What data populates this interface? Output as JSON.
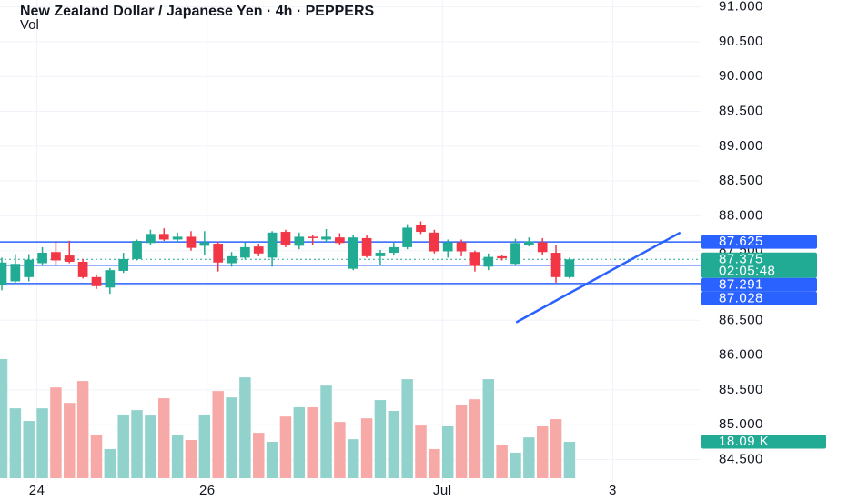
{
  "chart_data": {
    "type": "candlestick",
    "title": "New Zealand Dollar / Japanese Yen · 4h · PEPPERS",
    "volume_title": "Vol",
    "up_color": "#22ab94",
    "down_color": "#f23645",
    "volume_up_color": "#92d2cc",
    "volume_down_color": "#f7a9a7",
    "open": [
      87.0,
      87.06,
      87.12,
      87.32,
      87.48,
      87.43,
      87.34,
      87.12,
      86.97,
      87.21,
      87.38,
      87.61,
      87.74,
      87.66,
      87.7,
      87.57,
      87.6,
      87.32,
      87.4,
      87.56,
      87.4,
      87.77,
      87.57,
      87.7,
      87.66,
      87.69,
      87.24,
      87.68,
      87.42,
      87.47,
      87.55,
      87.87,
      87.76,
      87.49,
      87.62,
      87.48,
      87.27,
      87.42,
      87.31,
      87.58,
      87.62,
      87.47,
      87.12
    ],
    "high": [
      87.4,
      87.45,
      87.45,
      87.55,
      87.64,
      87.64,
      87.38,
      87.16,
      87.25,
      87.47,
      87.66,
      87.8,
      87.82,
      87.76,
      87.78,
      87.78,
      87.63,
      87.48,
      87.62,
      87.6,
      87.78,
      87.8,
      87.76,
      87.73,
      87.81,
      87.75,
      87.72,
      87.72,
      87.51,
      87.62,
      87.88,
      87.92,
      87.8,
      87.66,
      87.66,
      87.5,
      87.46,
      87.44,
      87.67,
      87.69,
      87.68,
      87.58,
      87.4
    ],
    "low": [
      86.93,
      87.02,
      87.06,
      87.28,
      87.3,
      87.32,
      87.1,
      86.95,
      86.88,
      87.18,
      87.36,
      87.58,
      87.64,
      87.62,
      87.5,
      87.44,
      87.2,
      87.27,
      87.37,
      87.42,
      87.27,
      87.55,
      87.52,
      87.58,
      87.62,
      87.58,
      87.22,
      87.4,
      87.28,
      87.43,
      87.52,
      87.74,
      87.46,
      87.4,
      87.42,
      87.2,
      87.22,
      87.36,
      87.29,
      87.56,
      87.44,
      87.04,
      87.1
    ],
    "close": [
      87.33,
      87.31,
      87.37,
      87.47,
      87.36,
      87.34,
      87.12,
      86.99,
      87.22,
      87.38,
      87.64,
      87.74,
      87.66,
      87.7,
      87.54,
      87.62,
      87.33,
      87.42,
      87.55,
      87.46,
      87.76,
      87.58,
      87.7,
      87.68,
      87.7,
      87.61,
      87.69,
      87.42,
      87.47,
      87.55,
      87.83,
      87.77,
      87.49,
      87.62,
      87.49,
      87.28,
      87.41,
      87.39,
      87.61,
      87.63,
      87.48,
      87.12,
      87.375
    ],
    "volume": [
      59.3,
      34.8,
      28.5,
      34.8,
      45.2,
      37.5,
      48.4,
      21.3,
      14.5,
      31.7,
      33.9,
      31.2,
      39.8,
      21.7,
      19.0,
      31.7,
      43.4,
      40.2,
      50.2,
      22.6,
      18.1,
      30.7,
      35.3,
      35.3,
      46.1,
      28.0,
      19.4,
      29.8,
      38.9,
      33.5,
      49.3,
      26.2,
      14.5,
      25.8,
      36.6,
      39.3,
      49.3,
      16.7,
      12.7,
      20.3,
      25.8,
      29.4,
      18.09
    ],
    "volume_last_label": "18.09 K",
    "countdown": "02:05:48",
    "xlim": [
      -0.135,
      51.7
    ],
    "xticks": [
      {
        "value": 2.6,
        "label": "24"
      },
      {
        "value": 15.2,
        "label": "26"
      },
      {
        "value": 32.6,
        "label": "Jul"
      },
      {
        "value": 45.2,
        "label": "3"
      }
    ],
    "ylim": [
      84.18,
      91.1
    ],
    "yticks": [
      {
        "value": 84.5,
        "label": "84.500"
      },
      {
        "value": 85,
        "label": "85.000"
      },
      {
        "value": 85.5,
        "label": "85.500"
      },
      {
        "value": 86,
        "label": "86.000"
      },
      {
        "value": 86.5,
        "label": "86.500"
      },
      {
        "value": 87,
        "label": "87.000"
      },
      {
        "value": 87.5,
        "label": "87.500"
      },
      {
        "value": 88,
        "label": "88.000"
      },
      {
        "value": 88.5,
        "label": "88.500"
      },
      {
        "value": 89,
        "label": "89.000"
      },
      {
        "value": 89.5,
        "label": "89.500"
      },
      {
        "value": 90,
        "label": "90.000"
      },
      {
        "value": 90.5,
        "label": "90.500"
      },
      {
        "value": 91,
        "label": "91.000"
      }
    ],
    "grid": true,
    "hlines": [
      87.625,
      87.291,
      87.028
    ],
    "hline_color": "#2962ff",
    "trendline": {
      "x": [
        38.05,
        50.2
      ],
      "y": [
        86.47,
        87.76
      ]
    }
  }
}
